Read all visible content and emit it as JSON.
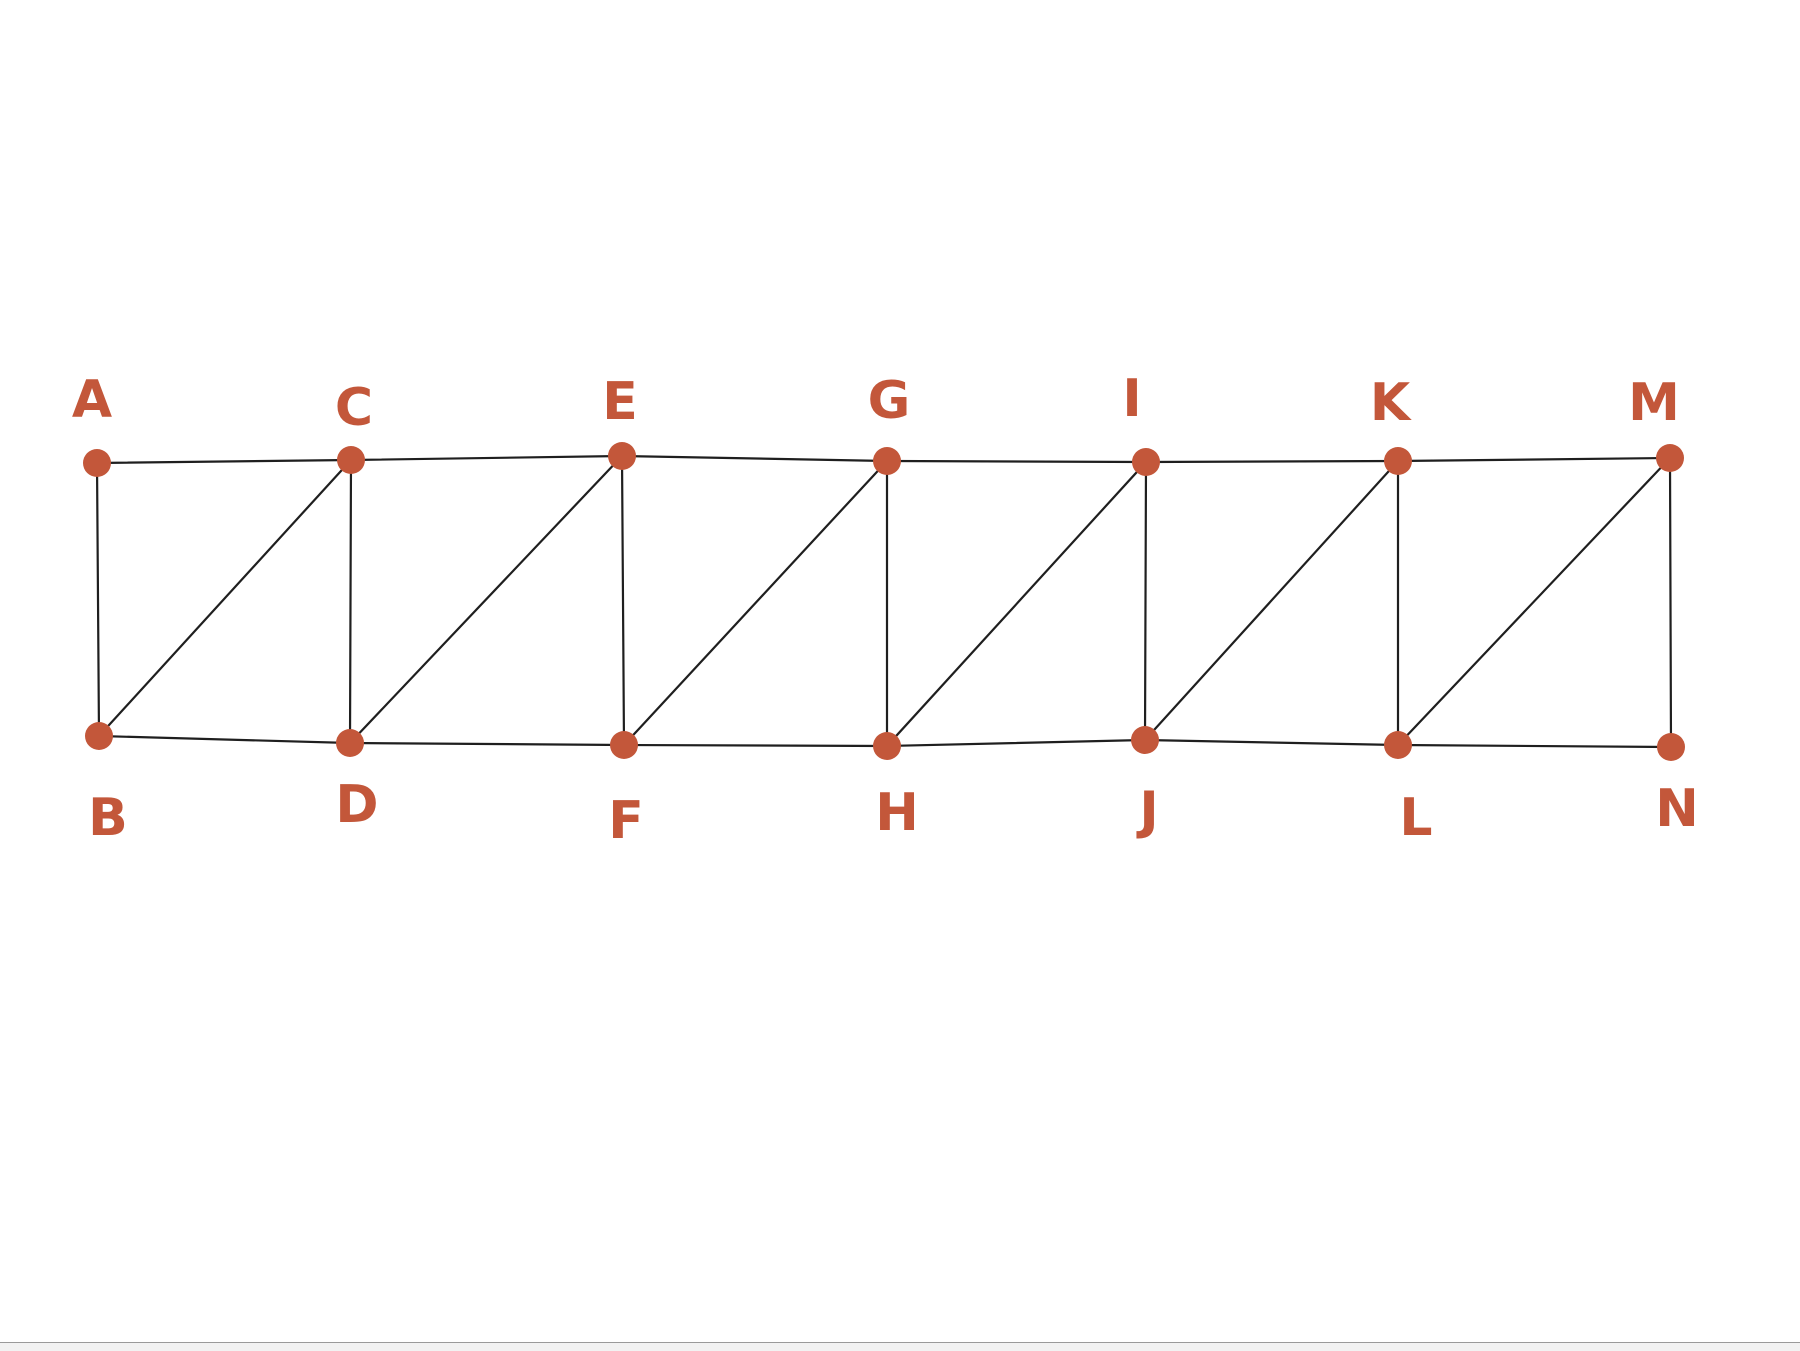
{
  "graph": {
    "node_color": "#c3573a",
    "edge_color": "#1f1f1f",
    "nodes": [
      {
        "id": "A",
        "label": "A"
      },
      {
        "id": "B",
        "label": "B"
      },
      {
        "id": "C",
        "label": "C"
      },
      {
        "id": "D",
        "label": "D"
      },
      {
        "id": "E",
        "label": "E"
      },
      {
        "id": "F",
        "label": "F"
      },
      {
        "id": "G",
        "label": "G"
      },
      {
        "id": "H",
        "label": "H"
      },
      {
        "id": "I",
        "label": "I"
      },
      {
        "id": "J",
        "label": "J"
      },
      {
        "id": "K",
        "label": "K"
      },
      {
        "id": "L",
        "label": "L"
      },
      {
        "id": "M",
        "label": "M"
      },
      {
        "id": "N",
        "label": "N"
      }
    ],
    "edges": [
      [
        "A",
        "C"
      ],
      [
        "C",
        "E"
      ],
      [
        "E",
        "G"
      ],
      [
        "G",
        "I"
      ],
      [
        "I",
        "K"
      ],
      [
        "K",
        "M"
      ],
      [
        "B",
        "D"
      ],
      [
        "D",
        "F"
      ],
      [
        "F",
        "H"
      ],
      [
        "H",
        "J"
      ],
      [
        "J",
        "L"
      ],
      [
        "L",
        "N"
      ],
      [
        "A",
        "B"
      ],
      [
        "C",
        "D"
      ],
      [
        "E",
        "F"
      ],
      [
        "G",
        "H"
      ],
      [
        "I",
        "J"
      ],
      [
        "K",
        "L"
      ],
      [
        "M",
        "N"
      ],
      [
        "C",
        "B"
      ],
      [
        "E",
        "D"
      ],
      [
        "G",
        "F"
      ],
      [
        "I",
        "H"
      ],
      [
        "K",
        "J"
      ],
      [
        "M",
        "L"
      ]
    ]
  }
}
